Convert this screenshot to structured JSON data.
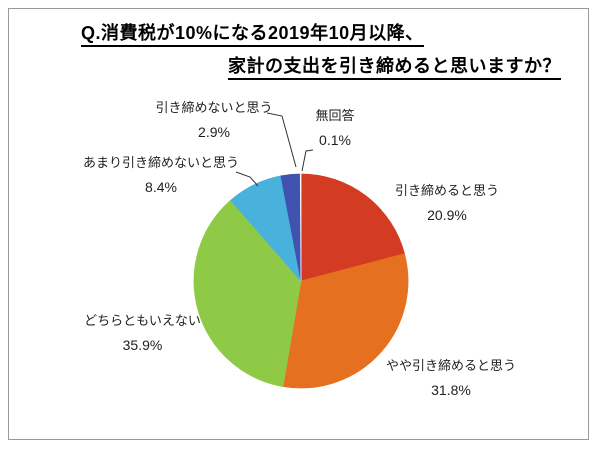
{
  "window": {
    "background_color": "#ffffff",
    "frame_border_color": "#9a9a9a"
  },
  "chart_data": {
    "type": "pie",
    "title_line1": "Q.消費税が10%になる2019年10月以降、",
    "title_line2": "家計の支出を引き締めると思いますか？",
    "direction": "clockwise",
    "start_angle_deg": 0,
    "legend_position": "none",
    "labels_style": "outside-with-percent",
    "slices": [
      {
        "label": "引き締めると思う",
        "value": 20.9,
        "pct": "20.9%",
        "color": "#d43b23"
      },
      {
        "label": "やや引き締めると思う",
        "value": 31.8,
        "pct": "31.8%",
        "color": "#e57120"
      },
      {
        "label": "どちらともいえない",
        "value": 35.9,
        "pct": "35.9%",
        "color": "#8fca47"
      },
      {
        "label": "あまり引き締めないと思う",
        "value": 8.4,
        "pct": "8.4%",
        "color": "#48b1dc"
      },
      {
        "label": "引き締めないと思う",
        "value": 2.9,
        "pct": "2.9%",
        "color": "#4152b1"
      },
      {
        "label": "無回答",
        "value": 0.1,
        "pct": "0.1%",
        "color": "#ffffff"
      }
    ]
  }
}
